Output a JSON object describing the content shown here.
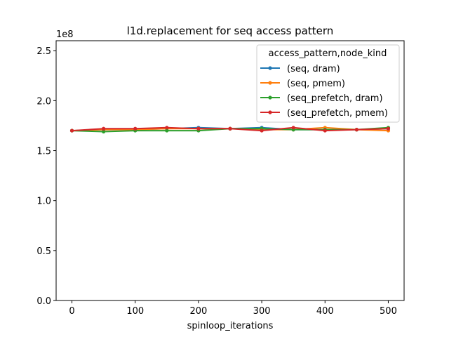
{
  "chart_data": {
    "type": "line",
    "title": "l1d.replacement for seq access pattern",
    "xlabel": "spinloop_iterations",
    "ylabel": "",
    "y_offset_label": "1e8",
    "xlim": [
      -25,
      525
    ],
    "ylim": [
      0.0,
      2.6
    ],
    "x_ticks": [
      0,
      100,
      200,
      300,
      400,
      500
    ],
    "x_tick_labels": [
      "0",
      "100",
      "200",
      "300",
      "400",
      "500"
    ],
    "y_ticks": [
      0.0,
      0.5,
      1.0,
      1.5,
      2.0,
      2.5
    ],
    "y_tick_labels": [
      "0.0",
      "0.5",
      "1.0",
      "1.5",
      "2.0",
      "2.5"
    ],
    "grid": false,
    "legend_title": "access_pattern,node_kind",
    "legend_position": "top-right",
    "x": [
      0,
      50,
      100,
      150,
      200,
      250,
      300,
      350,
      400,
      450,
      500
    ],
    "series": [
      {
        "name": "(seq, dram)",
        "color": "#1f77b4",
        "values": [
          1.7,
          1.71,
          1.71,
          1.72,
          1.73,
          1.72,
          1.73,
          1.71,
          1.71,
          1.71,
          1.72
        ]
      },
      {
        "name": "(seq, pmem)",
        "color": "#ff7f0e",
        "values": [
          1.7,
          1.71,
          1.71,
          1.72,
          1.72,
          1.72,
          1.71,
          1.71,
          1.73,
          1.71,
          1.7
        ]
      },
      {
        "name": "(seq_prefetch, dram)",
        "color": "#2ca02c",
        "values": [
          1.7,
          1.69,
          1.7,
          1.7,
          1.7,
          1.72,
          1.72,
          1.71,
          1.71,
          1.71,
          1.73
        ]
      },
      {
        "name": "(seq_prefetch, pmem)",
        "color": "#d62728",
        "values": [
          1.7,
          1.72,
          1.72,
          1.73,
          1.72,
          1.72,
          1.7,
          1.73,
          1.7,
          1.71,
          1.72
        ]
      }
    ]
  }
}
